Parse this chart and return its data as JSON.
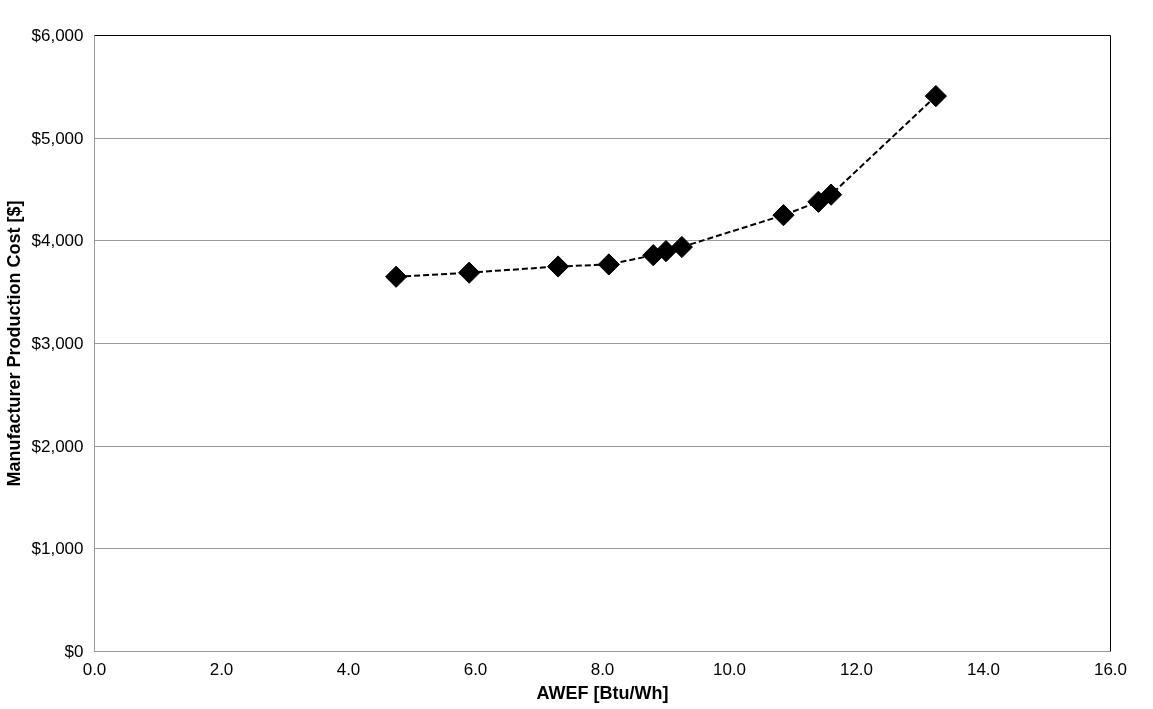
{
  "chart_data": {
    "type": "line",
    "xlabel": "AWEF [Btu/Wh]",
    "ylabel": "Manufacturer Production Cost [$]",
    "x": [
      4.75,
      5.9,
      7.3,
      8.1,
      8.8,
      9.0,
      9.25,
      10.85,
      11.4,
      11.6,
      13.25
    ],
    "series": [
      {
        "color": "#000000",
        "values": [
          3650,
          3690,
          3750,
          3770,
          3860,
          3900,
          3940,
          4250,
          4380,
          4450,
          5410
        ]
      }
    ],
    "xlim": [
      0,
      16
    ],
    "xticks": [
      {
        "value": 0,
        "label": "0.0"
      },
      {
        "value": 2,
        "label": "2.0"
      },
      {
        "value": 4,
        "label": "4.0"
      },
      {
        "value": 6,
        "label": "6.0"
      },
      {
        "value": 8,
        "label": "8.0"
      },
      {
        "value": 10,
        "label": "10.0"
      },
      {
        "value": 12,
        "label": "12.0"
      },
      {
        "value": 14,
        "label": "14.0"
      },
      {
        "value": 16,
        "label": "16.0"
      }
    ],
    "ylim": [
      0,
      6000
    ],
    "yticks": [
      {
        "value": 0,
        "label": "$0"
      },
      {
        "value": 1000,
        "label": "$1,000"
      },
      {
        "value": 2000,
        "label": "$2,000"
      },
      {
        "value": 3000,
        "label": "$3,000"
      },
      {
        "value": 4000,
        "label": "$4,000"
      },
      {
        "value": 5000,
        "label": "$5,000"
      },
      {
        "value": 6000,
        "label": "$6,000"
      }
    ],
    "grid": "y",
    "marker": "diamond",
    "line_style": "dashed"
  }
}
